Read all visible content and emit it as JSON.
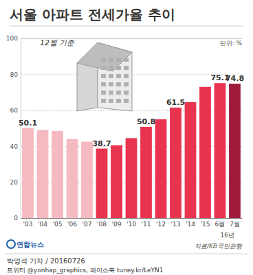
{
  "chart_data": {
    "type": "bar",
    "title": "서울 아파트 전세가율 추이",
    "subtitle": "12월 기준",
    "ylabel": "단위: %",
    "categories": [
      "'03",
      "'04",
      "'05",
      "'06",
      "'07",
      "'08",
      "'09",
      "'10",
      "'11",
      "'12",
      "'13",
      "'14",
      "'15",
      "6월",
      "7월"
    ],
    "values": [
      50.1,
      49.0,
      48.5,
      44.0,
      42.5,
      38.7,
      40.5,
      44.5,
      50.8,
      55.0,
      61.5,
      64.5,
      73.0,
      75.1,
      74.8
    ],
    "value_labels": [
      "50.1",
      null,
      null,
      null,
      null,
      "38.7",
      null,
      null,
      "50.8",
      null,
      "61.5",
      null,
      null,
      "75.1",
      "74.8"
    ],
    "colors": [
      "#f5b9c1",
      "#f5b9c1",
      "#f5b9c1",
      "#f5b9c1",
      "#f5b9c1",
      "#e8344e",
      "#e8344e",
      "#e8344e",
      "#e8344e",
      "#e8344e",
      "#e8344e",
      "#e8344e",
      "#e8344e",
      "#e8344e",
      "#9e1b3b"
    ],
    "data_labels": true,
    "ylim": [
      0,
      100
    ],
    "yticks": [
      0,
      20,
      40,
      60,
      80,
      100
    ],
    "grid": true,
    "annotations": [
      "16년",
      "자료/KB국민은행",
      "연합뉴스",
      "박영석 기자 / 20160726",
      "트위터 @yonhap_graphics, 페이스북 tuney.kr/LeYN1"
    ]
  }
}
